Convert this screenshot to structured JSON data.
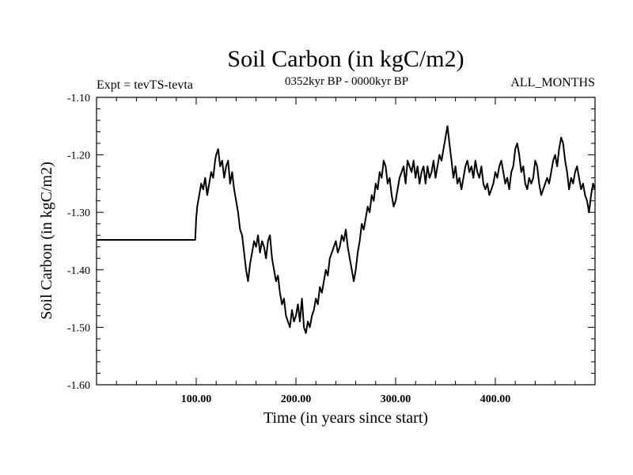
{
  "header": {
    "title": "Soil Carbon (in kgC/m2)",
    "experiment": "Expt = tevTS-tevta",
    "period": "0352kyr BP - 0000kyr BP",
    "months": "ALL_MONTHS"
  },
  "chart_data": {
    "type": "line",
    "title": "Soil Carbon (in kgC/m2)",
    "xlabel": "Time (in years since start)",
    "ylabel": "Soil Carbon (in kgC/m2)",
    "xlim": [
      0,
      500
    ],
    "ylim": [
      -1.6,
      -1.1
    ],
    "xticks": [
      100,
      200,
      300,
      400
    ],
    "xtick_labels": [
      "100.00",
      "200.00",
      "300.00",
      "400.00"
    ],
    "yticks": [
      -1.1,
      -1.2,
      -1.3,
      -1.4,
      -1.5,
      -1.6
    ],
    "ytick_labels": [
      "-1.10",
      "-1.20",
      "-1.30",
      "-1.40",
      "-1.50",
      "-1.60"
    ],
    "grid": false,
    "series": [
      {
        "name": "soil carbon",
        "color": "#000000",
        "x": [
          0,
          99,
          100,
          101,
          103,
          105,
          107,
          109,
          111,
          113,
          115,
          117,
          119,
          120,
          122,
          124,
          126,
          128,
          130,
          132,
          134,
          136,
          138,
          140,
          142,
          144,
          146,
          148,
          150,
          152,
          154,
          156,
          158,
          160,
          162,
          164,
          166,
          168,
          170,
          172,
          174,
          176,
          178,
          180,
          182,
          184,
          186,
          188,
          190,
          192,
          194,
          196,
          198,
          200,
          202,
          204,
          206,
          208,
          210,
          212,
          214,
          216,
          218,
          220,
          222,
          224,
          226,
          228,
          230,
          232,
          234,
          236,
          238,
          240,
          242,
          244,
          246,
          248,
          250,
          252,
          254,
          256,
          258,
          260,
          262,
          264,
          266,
          268,
          270,
          272,
          274,
          276,
          278,
          280,
          282,
          284,
          286,
          288,
          290,
          292,
          294,
          296,
          298,
          300,
          302,
          304,
          306,
          308,
          310,
          312,
          314,
          316,
          318,
          320,
          322,
          324,
          326,
          328,
          330,
          332,
          334,
          336,
          338,
          340,
          342,
          344,
          346,
          348,
          350,
          352,
          354,
          356,
          358,
          360,
          362,
          364,
          366,
          368,
          370,
          372,
          374,
          376,
          378,
          380,
          382,
          384,
          386,
          388,
          390,
          392,
          394,
          396,
          398,
          400,
          402,
          404,
          406,
          408,
          410,
          412,
          414,
          416,
          418,
          420,
          422,
          424,
          426,
          428,
          430,
          432,
          434,
          436,
          438,
          440,
          442,
          444,
          446,
          448,
          450,
          452,
          454,
          456,
          458,
          460,
          462,
          464,
          466,
          468,
          470,
          472,
          474,
          476,
          478,
          480,
          482,
          484,
          486,
          488,
          490,
          492,
          494,
          496,
          498,
          500
        ],
        "y": [
          -1.348,
          -1.348,
          -1.31,
          -1.29,
          -1.27,
          -1.25,
          -1.26,
          -1.24,
          -1.27,
          -1.25,
          -1.23,
          -1.24,
          -1.21,
          -1.2,
          -1.19,
          -1.22,
          -1.21,
          -1.24,
          -1.22,
          -1.21,
          -1.25,
          -1.23,
          -1.26,
          -1.28,
          -1.3,
          -1.33,
          -1.34,
          -1.37,
          -1.4,
          -1.42,
          -1.39,
          -1.37,
          -1.35,
          -1.36,
          -1.34,
          -1.37,
          -1.35,
          -1.36,
          -1.38,
          -1.35,
          -1.34,
          -1.38,
          -1.4,
          -1.42,
          -1.41,
          -1.44,
          -1.46,
          -1.45,
          -1.48,
          -1.49,
          -1.5,
          -1.47,
          -1.49,
          -1.48,
          -1.46,
          -1.49,
          -1.45,
          -1.5,
          -1.51,
          -1.49,
          -1.5,
          -1.48,
          -1.47,
          -1.45,
          -1.46,
          -1.43,
          -1.44,
          -1.42,
          -1.4,
          -1.41,
          -1.38,
          -1.37,
          -1.36,
          -1.35,
          -1.37,
          -1.36,
          -1.34,
          -1.35,
          -1.33,
          -1.36,
          -1.38,
          -1.4,
          -1.42,
          -1.4,
          -1.37,
          -1.35,
          -1.32,
          -1.33,
          -1.31,
          -1.29,
          -1.3,
          -1.27,
          -1.28,
          -1.25,
          -1.26,
          -1.23,
          -1.24,
          -1.21,
          -1.22,
          -1.25,
          -1.24,
          -1.27,
          -1.29,
          -1.28,
          -1.26,
          -1.24,
          -1.23,
          -1.22,
          -1.25,
          -1.21,
          -1.22,
          -1.23,
          -1.21,
          -1.24,
          -1.22,
          -1.25,
          -1.23,
          -1.22,
          -1.25,
          -1.22,
          -1.24,
          -1.23,
          -1.21,
          -1.24,
          -1.22,
          -1.2,
          -1.21,
          -1.19,
          -1.17,
          -1.15,
          -1.18,
          -1.21,
          -1.24,
          -1.22,
          -1.25,
          -1.24,
          -1.26,
          -1.24,
          -1.22,
          -1.21,
          -1.23,
          -1.22,
          -1.24,
          -1.21,
          -1.23,
          -1.24,
          -1.22,
          -1.25,
          -1.26,
          -1.25,
          -1.27,
          -1.26,
          -1.25,
          -1.23,
          -1.24,
          -1.22,
          -1.21,
          -1.23,
          -1.25,
          -1.24,
          -1.26,
          -1.23,
          -1.22,
          -1.19,
          -1.18,
          -1.2,
          -1.23,
          -1.22,
          -1.25,
          -1.26,
          -1.24,
          -1.25,
          -1.24,
          -1.21,
          -1.22,
          -1.25,
          -1.27,
          -1.26,
          -1.25,
          -1.24,
          -1.25,
          -1.23,
          -1.21,
          -1.2,
          -1.22,
          -1.19,
          -1.17,
          -1.18,
          -1.21,
          -1.23,
          -1.26,
          -1.24,
          -1.25,
          -1.23,
          -1.22,
          -1.24,
          -1.26,
          -1.25,
          -1.27,
          -1.28,
          -1.3,
          -1.27,
          -1.25,
          -1.26
        ]
      }
    ]
  }
}
